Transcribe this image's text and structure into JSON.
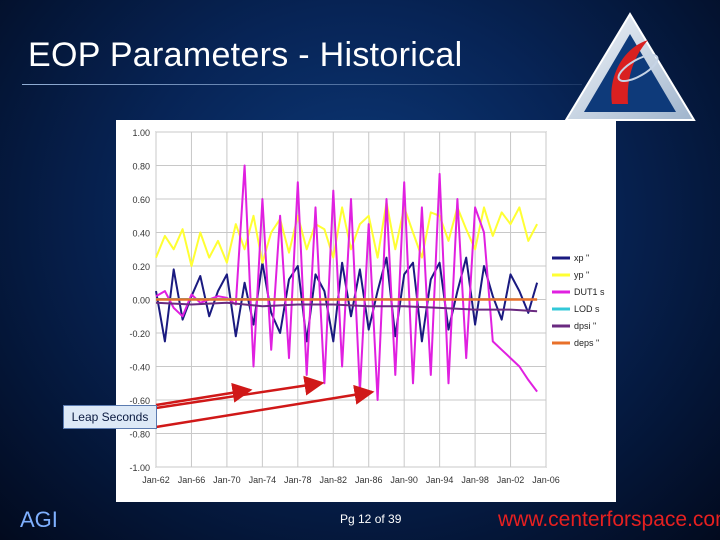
{
  "slide": {
    "title": "EOP Parameters - Historical",
    "footer_left": "AGI",
    "footer_page": "Pg 12 of 39",
    "footer_url": "www.centerforspace.com",
    "annotation": "Leap Seconds"
  },
  "colors": {
    "background": "#072456",
    "title": "#ffffff",
    "footer_left": "#7fb0ff",
    "footer_url": "#e62020",
    "arrow": "#d01818"
  },
  "chart_data": {
    "type": "line",
    "title": "",
    "xlabel": "",
    "ylabel": "",
    "x_range": [
      "Jan-62",
      "Jan-06"
    ],
    "ylim": [
      -1.0,
      1.0
    ],
    "yticks": [
      "1.00",
      "0.80",
      "0.60",
      "0.40",
      "0.20",
      "0.00",
      "-0.20",
      "-0.40",
      "-0.60",
      "-0.80",
      "-1.00"
    ],
    "xticks": [
      "Jan-62",
      "Jan-66",
      "Jan-70",
      "Jan-74",
      "Jan-78",
      "Jan-82",
      "Jan-86",
      "Jan-90",
      "Jan-94",
      "Jan-98",
      "Jan-02",
      "Jan-06"
    ],
    "grid": true,
    "legend_position": "right",
    "series": [
      {
        "name": "xp \"",
        "color": "#1a1a80",
        "x": [
          1962,
          1963,
          1964,
          1965,
          1966,
          1967,
          1968,
          1969,
          1970,
          1971,
          1972,
          1973,
          1974,
          1975,
          1976,
          1977,
          1978,
          1979,
          1980,
          1981,
          1982,
          1983,
          1984,
          1985,
          1986,
          1987,
          1988,
          1989,
          1990,
          1991,
          1992,
          1993,
          1994,
          1995,
          1996,
          1997,
          1998,
          1999,
          2000,
          2001,
          2002,
          2003,
          2004,
          2005
        ],
        "values": [
          0.05,
          -0.25,
          0.18,
          -0.12,
          0.02,
          0.14,
          -0.1,
          0.05,
          0.15,
          -0.22,
          0.1,
          -0.15,
          0.22,
          -0.08,
          -0.2,
          0.12,
          0.2,
          -0.25,
          0.15,
          0.05,
          -0.25,
          0.22,
          -0.1,
          0.18,
          -0.18,
          0.05,
          0.25,
          -0.22,
          0.15,
          0.22,
          -0.25,
          0.12,
          0.22,
          -0.18,
          0.05,
          0.25,
          -0.15,
          0.2,
          0.02,
          -0.12,
          0.15,
          0.05,
          -0.08,
          0.1
        ]
      },
      {
        "name": "yp \"",
        "color": "#ffff33",
        "x": [
          1962,
          1963,
          1964,
          1965,
          1966,
          1967,
          1968,
          1969,
          1970,
          1971,
          1972,
          1973,
          1974,
          1975,
          1976,
          1977,
          1978,
          1979,
          1980,
          1981,
          1982,
          1983,
          1984,
          1985,
          1986,
          1987,
          1988,
          1989,
          1990,
          1991,
          1992,
          1993,
          1994,
          1995,
          1996,
          1997,
          1998,
          1999,
          2000,
          2001,
          2002,
          2003,
          2004,
          2005
        ],
        "values": [
          0.25,
          0.38,
          0.3,
          0.42,
          0.2,
          0.4,
          0.25,
          0.35,
          0.22,
          0.45,
          0.3,
          0.5,
          0.22,
          0.4,
          0.48,
          0.28,
          0.5,
          0.3,
          0.45,
          0.42,
          0.25,
          0.55,
          0.3,
          0.45,
          0.5,
          0.25,
          0.58,
          0.3,
          0.55,
          0.4,
          0.25,
          0.52,
          0.5,
          0.35,
          0.55,
          0.42,
          0.3,
          0.55,
          0.38,
          0.52,
          0.45,
          0.55,
          0.35,
          0.45
        ]
      },
      {
        "name": "DUT1 s",
        "color": "#e020e0",
        "x": [
          1962,
          1963,
          1964,
          1965,
          1966,
          1967,
          1968,
          1969,
          1970,
          1971,
          1972,
          1973,
          1974,
          1975,
          1976,
          1977,
          1978,
          1979,
          1980,
          1981,
          1982,
          1983,
          1984,
          1985,
          1986,
          1987,
          1988,
          1989,
          1990,
          1991,
          1992,
          1993,
          1994,
          1995,
          1996,
          1997,
          1998,
          1999,
          2000,
          2001,
          2002,
          2003,
          2004,
          2005
        ],
        "values": [
          0.02,
          0.05,
          -0.05,
          -0.1,
          0.03,
          -0.02,
          0.0,
          0.02,
          0.01,
          -0.03,
          0.8,
          -0.4,
          0.6,
          -0.3,
          0.5,
          -0.35,
          0.7,
          -0.45,
          0.55,
          -0.5,
          0.65,
          -0.4,
          0.6,
          -0.55,
          0.45,
          -0.6,
          0.6,
          -0.45,
          0.7,
          -0.5,
          0.55,
          -0.45,
          0.75,
          -0.5,
          0.6,
          -0.35,
          0.55,
          0.4,
          -0.25,
          -0.3,
          -0.35,
          -0.4,
          -0.48,
          -0.55
        ]
      },
      {
        "name": "LOD s",
        "color": "#33c8d8",
        "x": [
          1962,
          1966,
          1970,
          1974,
          1978,
          1982,
          1986,
          1990,
          1994,
          1998,
          2002,
          2005
        ],
        "values": [
          0.003,
          0.003,
          0.003,
          0.003,
          0.002,
          0.002,
          0.002,
          0.001,
          0.002,
          0.001,
          0.001,
          0.0
        ]
      },
      {
        "name": "dpsi \"",
        "color": "#6a2a80",
        "x": [
          1962,
          1966,
          1970,
          1974,
          1978,
          1982,
          1986,
          1990,
          1994,
          1998,
          2002,
          2005
        ],
        "values": [
          -0.02,
          -0.03,
          -0.02,
          -0.04,
          -0.03,
          -0.03,
          -0.04,
          -0.04,
          -0.05,
          -0.06,
          -0.06,
          -0.07
        ]
      },
      {
        "name": "deps \"",
        "color": "#e8702a",
        "x": [
          1962,
          1966,
          1970,
          1974,
          1978,
          1982,
          1986,
          1990,
          1994,
          1998,
          2002,
          2005
        ],
        "values": [
          0.0,
          0.0,
          0.0,
          0.0,
          0.0,
          0.0,
          0.0,
          0.0,
          0.0,
          0.0,
          0.0,
          0.0
        ]
      }
    ]
  }
}
